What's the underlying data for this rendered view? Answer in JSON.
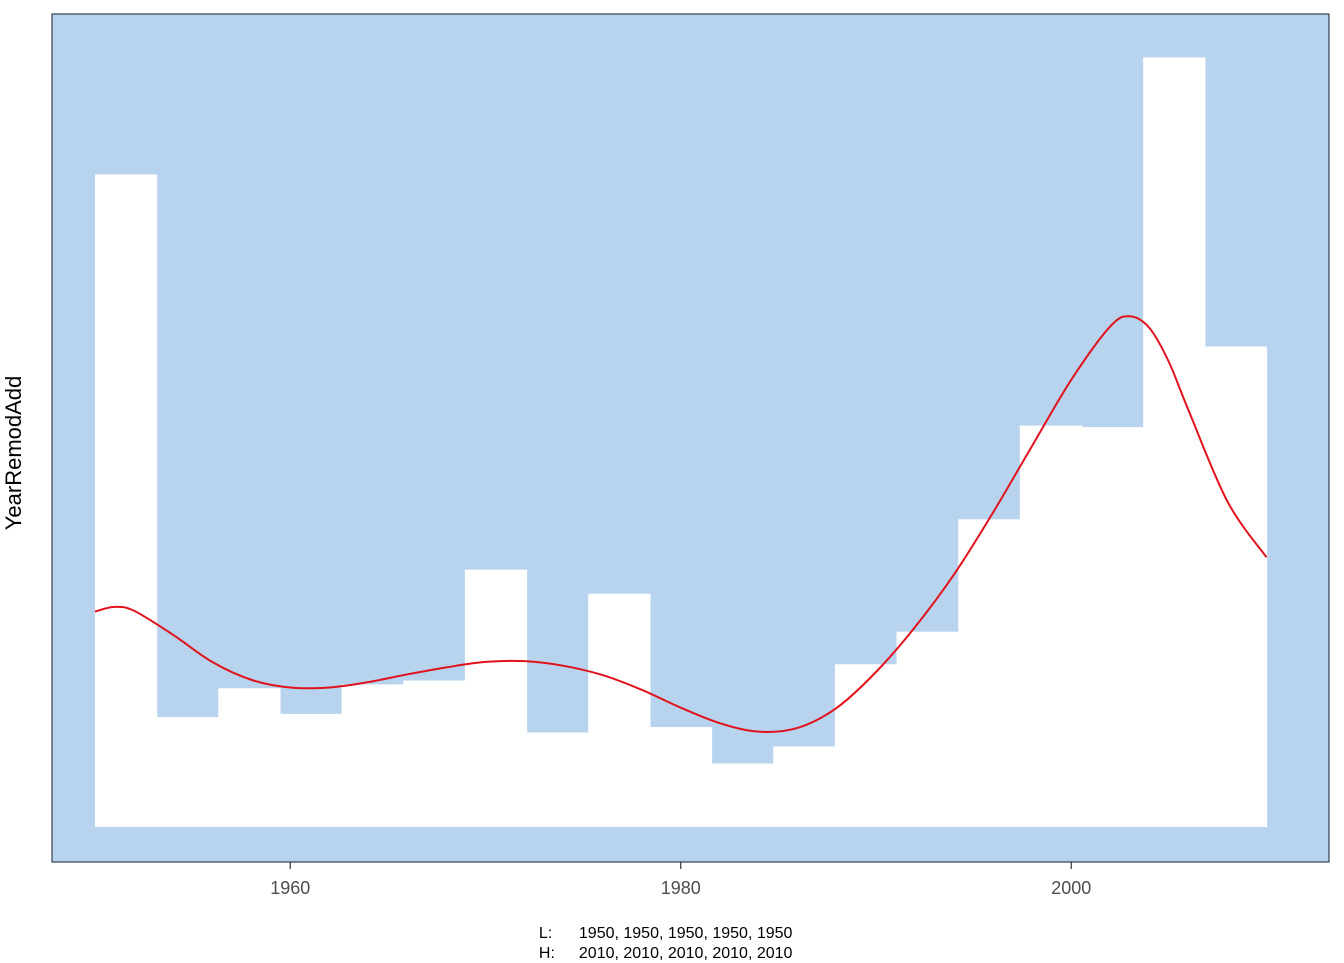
{
  "chart_data": {
    "type": "bar",
    "ylabel": "YearRemodAdd",
    "xlim": [
      1947.8,
      2013.2
    ],
    "ylim": [
      0,
      100
    ],
    "x_ticks": [
      1960,
      1980,
      2000
    ],
    "bin_width": 3.1579,
    "bin_starts": [
      1950.0,
      1953.158,
      1956.316,
      1959.474,
      1962.632,
      1965.789,
      1968.947,
      1972.105,
      1975.263,
      1978.421,
      1981.579,
      1984.737,
      1987.895,
      1991.053,
      1994.211,
      1997.368,
      2000.526,
      2003.684,
      2006.842
    ],
    "values": [
      84.2,
      14.2,
      17.9,
      14.6,
      18.4,
      18.9,
      33.2,
      12.2,
      30.1,
      12.9,
      8.2,
      10.4,
      21.0,
      25.2,
      39.7,
      51.8,
      51.6,
      99.3,
      62.0
    ],
    "smooth_curve": {
      "x": [
        1950,
        1951,
        1952,
        1954,
        1956,
        1958,
        1960,
        1962,
        1964,
        1966,
        1968,
        1970,
        1972,
        1974,
        1976,
        1978,
        1980,
        1982,
        1984,
        1986,
        1988,
        1990,
        1992,
        1994,
        1996,
        1998,
        2000,
        2002,
        2003,
        2004,
        2005,
        2006,
        2008,
        2010
      ],
      "y": [
        27.8,
        28.4,
        27.9,
        24.8,
        21.3,
        19.0,
        18.0,
        18.0,
        18.7,
        19.7,
        20.6,
        21.3,
        21.4,
        20.8,
        19.6,
        17.7,
        15.4,
        13.4,
        12.3,
        12.8,
        15.4,
        20.0,
        25.8,
        32.6,
        40.6,
        49.2,
        57.7,
        64.6,
        65.9,
        64.4,
        60.0,
        53.8,
        42.0,
        34.8
      ]
    },
    "bar_color": "#ffffff",
    "background_color": "#b8d3ed",
    "curve_color": "#e0121c",
    "grid": false
  },
  "caption": {
    "low_key": "L:",
    "low_values": "1950, 1950, 1950, 1950, 1950",
    "high_key": "H:",
    "high_values": "2010, 2010, 2010, 2010, 2010"
  }
}
